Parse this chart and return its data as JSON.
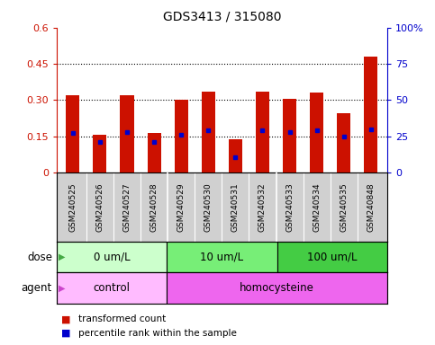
{
  "title": "GDS3413 / 315080",
  "samples": [
    "GSM240525",
    "GSM240526",
    "GSM240527",
    "GSM240528",
    "GSM240529",
    "GSM240530",
    "GSM240531",
    "GSM240532",
    "GSM240533",
    "GSM240534",
    "GSM240535",
    "GSM240848"
  ],
  "red_values": [
    0.32,
    0.155,
    0.32,
    0.162,
    0.3,
    0.335,
    0.138,
    0.335,
    0.305,
    0.33,
    0.245,
    0.48
  ],
  "blue_values": [
    0.165,
    0.128,
    0.168,
    0.128,
    0.158,
    0.175,
    0.065,
    0.175,
    0.168,
    0.175,
    0.148,
    0.178
  ],
  "ylim_left": [
    0,
    0.6
  ],
  "ylim_right": [
    0,
    100
  ],
  "yticks_left": [
    0,
    0.15,
    0.3,
    0.45,
    0.6
  ],
  "yticks_right": [
    0,
    25,
    50,
    75,
    100
  ],
  "ytick_labels_left": [
    "0",
    "0.15",
    "0.30",
    "0.45",
    "0.6"
  ],
  "ytick_labels_right": [
    "0",
    "25",
    "50",
    "75",
    "100%"
  ],
  "dose_groups": [
    {
      "label": "0 um/L",
      "start": 0,
      "end": 4,
      "color": "#ccffcc"
    },
    {
      "label": "10 um/L",
      "start": 4,
      "end": 8,
      "color": "#77ee77"
    },
    {
      "label": "100 um/L",
      "start": 8,
      "end": 12,
      "color": "#44cc44"
    }
  ],
  "agent_groups": [
    {
      "label": "control",
      "start": 0,
      "end": 4,
      "color": "#ffbbff"
    },
    {
      "label": "homocysteine",
      "start": 4,
      "end": 12,
      "color": "#ee66ee"
    }
  ],
  "dose_label": "dose",
  "agent_label": "agent",
  "legend_red": "transformed count",
  "legend_blue": "percentile rank within the sample",
  "bar_color": "#cc1100",
  "blue_color": "#0000cc",
  "left_axis_color": "#cc1100",
  "right_axis_color": "#0000cc",
  "bar_width": 0.5,
  "xtick_bg": "#d0d0d0",
  "xtick_sep_color": "#ffffff"
}
